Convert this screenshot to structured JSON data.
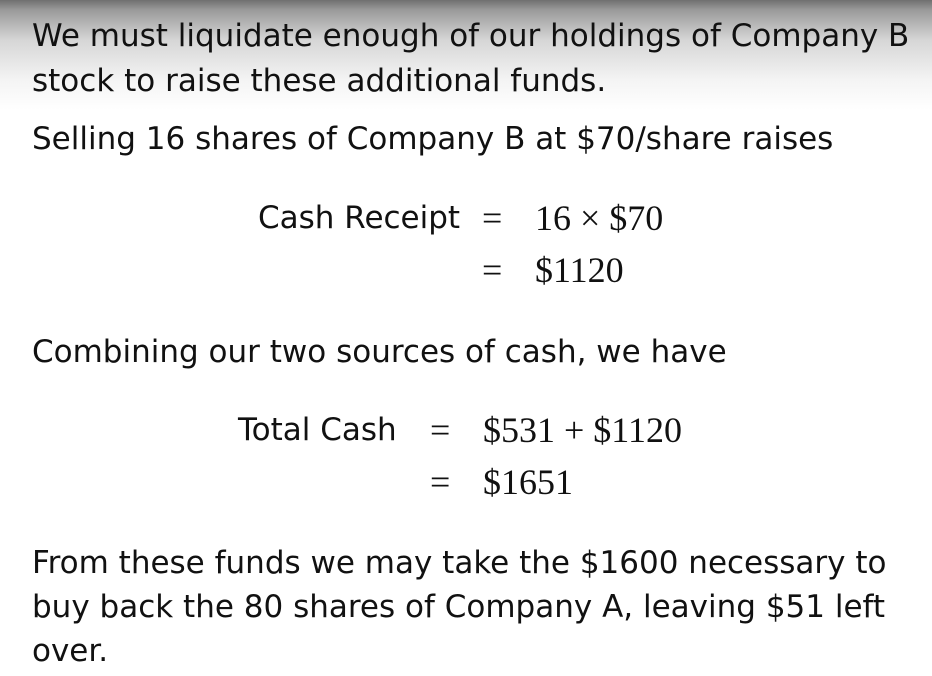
{
  "paragraphs": {
    "p1": "We must liquidate enough of our holdings of Company B stock to raise these additional funds.",
    "p2": "Selling 16 shares of Company B at $70/share raises",
    "p3": "Combining our two sources of cash, we have",
    "p4": "From these funds we may take the $1600 necessary to buy back the 80 shares of Company A, leaving $51 left over."
  },
  "equation1": {
    "lhs": "Cash Receipt",
    "sign": "=",
    "rhs1": "16 × $70",
    "rhs2": "$1120"
  },
  "equation2": {
    "lhs": "Total Cash",
    "sign": "=",
    "rhs1": "$531 + $1120",
    "rhs2": "$1651"
  }
}
